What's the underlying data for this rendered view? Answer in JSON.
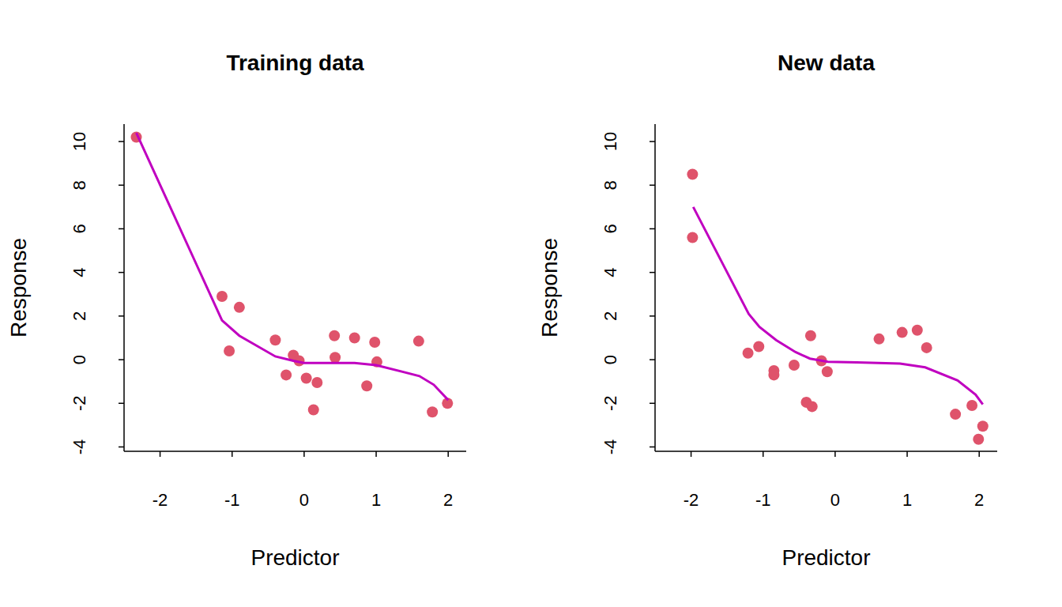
{
  "chart_data": [
    {
      "type": "scatter",
      "title": "Training data",
      "x_label": "Predictor",
      "y_label": "Response",
      "xlim": [
        -2.5,
        2.25
      ],
      "ylim": [
        -4.2,
        10.8
      ],
      "xticks": [
        -2,
        -1,
        0,
        1,
        2
      ],
      "yticks": [
        -4,
        -2,
        0,
        2,
        4,
        6,
        8,
        10
      ],
      "series": [
        {
          "type": "scatter",
          "color": "#DF536B",
          "marker": "circle",
          "x": [
            -2.33,
            -1.14,
            -1.04,
            -0.9,
            -0.4,
            -0.15,
            -0.25,
            -0.07,
            0.03,
            0.18,
            0.13,
            0.42,
            0.43,
            0.7,
            0.98,
            1.01,
            0.87,
            1.59,
            1.78,
            1.99
          ],
          "values": [
            10.2,
            2.9,
            0.4,
            2.4,
            0.9,
            0.2,
            -0.7,
            -0.05,
            -0.85,
            -1.05,
            -2.3,
            1.1,
            0.1,
            1.0,
            0.8,
            -0.1,
            -1.2,
            0.85,
            -2.4,
            -2.0
          ]
        },
        {
          "type": "line",
          "color": "#C000C0",
          "line_style": "solid",
          "x": [
            -2.33,
            -1.14,
            -0.9,
            -0.4,
            -0.15,
            0,
            0.4,
            0.7,
            1.0,
            1.6,
            1.8,
            2.0
          ],
          "values": [
            10.4,
            1.8,
            1.1,
            0.15,
            -0.05,
            -0.15,
            -0.15,
            -0.15,
            -0.25,
            -0.75,
            -1.15,
            -1.85
          ]
        }
      ]
    },
    {
      "type": "scatter",
      "title": "New data",
      "x_label": "Predictor",
      "y_label": "Response",
      "xlim": [
        -2.5,
        2.25
      ],
      "ylim": [
        -4.2,
        10.8
      ],
      "xticks": [
        -2,
        -1,
        0,
        1,
        2
      ],
      "yticks": [
        -4,
        -2,
        0,
        2,
        4,
        6,
        8,
        10
      ],
      "series": [
        {
          "type": "scatter",
          "color": "#DF536B",
          "marker": "circle",
          "x": [
            -1.98,
            -1.98,
            -1.21,
            -1.06,
            -0.85,
            -0.85,
            -0.57,
            -0.4,
            -0.32,
            -0.34,
            -0.19,
            -0.11,
            0.61,
            0.93,
            1.14,
            1.27,
            1.67,
            1.9,
            1.99,
            2.05
          ],
          "values": [
            8.5,
            5.6,
            0.3,
            0.6,
            -0.5,
            -0.7,
            -0.25,
            -1.95,
            -2.15,
            1.1,
            -0.05,
            -0.55,
            0.95,
            1.25,
            1.35,
            0.55,
            -2.5,
            -2.1,
            -3.65,
            -3.05
          ]
        },
        {
          "type": "line",
          "color": "#C000C0",
          "line_style": "solid",
          "x": [
            -1.97,
            -1.2,
            -1.05,
            -0.82,
            -0.55,
            -0.35,
            -0.1,
            0.3,
            0.9,
            1.25,
            1.7,
            1.95,
            2.05
          ],
          "values": [
            7.0,
            2.1,
            1.5,
            0.9,
            0.35,
            0.05,
            -0.1,
            -0.12,
            -0.18,
            -0.35,
            -0.95,
            -1.6,
            -2.05
          ]
        }
      ]
    }
  ]
}
